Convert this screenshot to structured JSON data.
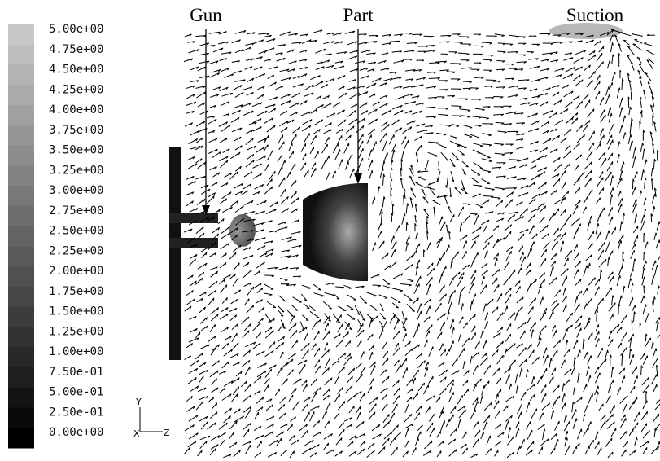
{
  "colorbar": {
    "labels": [
      "5.00e+00",
      "4.75e+00",
      "4.50e+00",
      "4.25e+00",
      "4.00e+00",
      "3.75e+00",
      "3.50e+00",
      "3.25e+00",
      "3.00e+00",
      "2.75e+00",
      "2.50e+00",
      "2.25e+00",
      "2.00e+00",
      "1.75e+00",
      "1.50e+00",
      "1.25e+00",
      "1.00e+00",
      "7.50e-01",
      "5.00e-01",
      "2.50e-01",
      "0.00e+00"
    ]
  },
  "annotations": {
    "gun": "Gun",
    "part": "Part",
    "suction": "Suction"
  },
  "axes_triad": {
    "y": "Y",
    "x": "X",
    "z": "Z"
  }
}
